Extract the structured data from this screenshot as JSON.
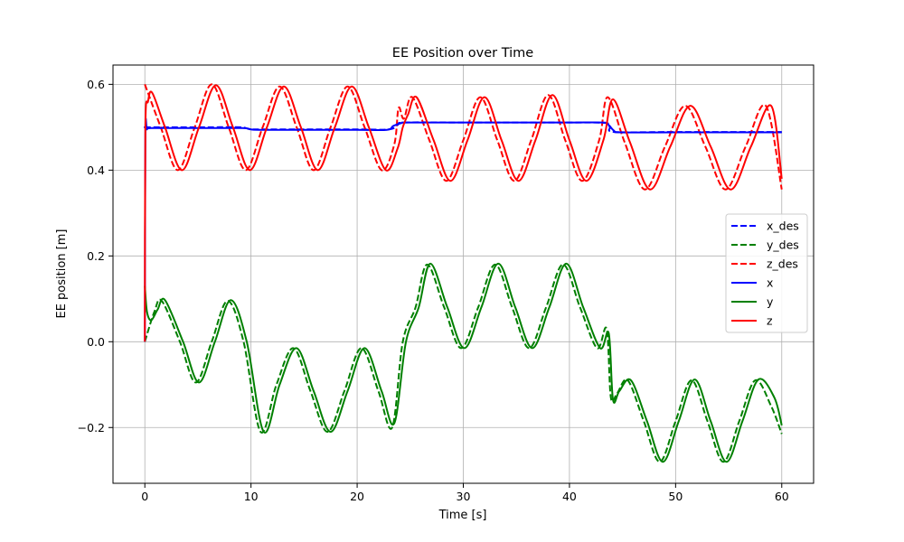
{
  "chart_data": {
    "type": "line",
    "title": "EE Position over Time",
    "xlabel": "Time [s]",
    "ylabel": "EE position [m]",
    "xlim": [
      -3.0,
      63.0
    ],
    "ylim": [
      -0.33,
      0.645
    ],
    "xticks": [
      0,
      10,
      20,
      30,
      40,
      50,
      60
    ],
    "xtick_labels": [
      "0",
      "10",
      "20",
      "30",
      "40",
      "50",
      "60"
    ],
    "yticks": [
      -0.2,
      0.0,
      0.2,
      0.4,
      0.6
    ],
    "ytick_labels": [
      "−0.2",
      "0.0",
      "0.2",
      "0.4",
      "0.6"
    ],
    "grid": true,
    "legend_position": "center-right",
    "series": [
      {
        "name": "x_des",
        "color": "#0000ff",
        "style": "dashed",
        "x": [
          0,
          0.3,
          3,
          6,
          9,
          9.8,
          10.5,
          15,
          20,
          23,
          23.8,
          24.5,
          30,
          35,
          40,
          43.4,
          43.8,
          44.3,
          50,
          55,
          60
        ],
        "y": [
          0.5,
          0.5,
          0.5,
          0.5,
          0.5,
          0.496,
          0.495,
          0.495,
          0.495,
          0.495,
          0.505,
          0.511,
          0.511,
          0.511,
          0.511,
          0.51,
          0.5,
          0.489,
          0.489,
          0.489,
          0.489
        ]
      },
      {
        "name": "y_des",
        "color": "#008000",
        "style": "dashed",
        "x": [
          0,
          0.9,
          1.6,
          3.3,
          4.8,
          6.3,
          7.8,
          9.3,
          10.9,
          12.4,
          14.0,
          15.6,
          17.2,
          18.8,
          20.4,
          22.0,
          23.3,
          24.3,
          25.5,
          26.6,
          28.2,
          29.8,
          31.4,
          33.0,
          34.6,
          36.2,
          37.8,
          39.4,
          41.0,
          42.6,
          43.5,
          43.9,
          44.5,
          45.5,
          47.0,
          48.5,
          50.0,
          51.5,
          53.0,
          54.5,
          56.0,
          57.5,
          59.0,
          60
        ],
        "y": [
          0.0,
          0.07,
          0.095,
          0.0,
          -0.095,
          0.0,
          0.095,
          0.0,
          -0.21,
          -0.1,
          -0.015,
          -0.115,
          -0.21,
          -0.115,
          -0.015,
          -0.115,
          -0.2,
          0.0,
          0.08,
          0.18,
          0.08,
          -0.015,
          0.08,
          0.18,
          0.08,
          -0.015,
          0.08,
          0.18,
          0.08,
          -0.015,
          0.03,
          -0.13,
          -0.12,
          -0.09,
          -0.185,
          -0.28,
          -0.185,
          -0.09,
          -0.185,
          -0.28,
          -0.185,
          -0.09,
          -0.15,
          -0.215
        ]
      },
      {
        "name": "z_des",
        "color": "#ff0000",
        "style": "dashed",
        "x": [
          0,
          1.5,
          3.1,
          4.7,
          6.3,
          7.9,
          9.5,
          11.1,
          12.7,
          14.3,
          15.9,
          17.5,
          19.1,
          20.7,
          22.3,
          23.5,
          23.9,
          24.4,
          25.2,
          26.8,
          28.4,
          30.0,
          31.6,
          33.2,
          34.8,
          36.4,
          38.0,
          39.6,
          41.2,
          42.8,
          43.6,
          45.2,
          47.1,
          49.0,
          50.9,
          52.8,
          54.7,
          56.6,
          58.5,
          60
        ],
        "y": [
          0.6,
          0.5,
          0.4,
          0.5,
          0.6,
          0.5,
          0.4,
          0.5,
          0.595,
          0.5,
          0.4,
          0.5,
          0.595,
          0.5,
          0.4,
          0.46,
          0.545,
          0.52,
          0.57,
          0.47,
          0.375,
          0.47,
          0.57,
          0.47,
          0.375,
          0.47,
          0.575,
          0.47,
          0.375,
          0.47,
          0.57,
          0.465,
          0.355,
          0.455,
          0.55,
          0.455,
          0.355,
          0.455,
          0.55,
          0.355
        ]
      },
      {
        "name": "x",
        "color": "#0000ff",
        "style": "solid",
        "x": [
          0,
          0.05,
          0.2,
          0.6,
          3,
          6,
          9.2,
          10,
          10.7,
          15,
          20,
          22.8,
          23.4,
          24.2,
          24.8,
          30,
          35,
          40,
          43.2,
          43.7,
          44.2,
          44.8,
          50,
          55,
          60
        ],
        "y": [
          0.0,
          0.48,
          0.495,
          0.498,
          0.498,
          0.498,
          0.498,
          0.495,
          0.494,
          0.494,
          0.494,
          0.494,
          0.503,
          0.51,
          0.511,
          0.511,
          0.511,
          0.511,
          0.511,
          0.505,
          0.492,
          0.488,
          0.488,
          0.488,
          0.488
        ]
      },
      {
        "name": "y",
        "color": "#008000",
        "style": "solid",
        "x": [
          0,
          0.2,
          0.6,
          1.2,
          1.9,
          3.6,
          5.1,
          6.6,
          8.1,
          9.6,
          11.2,
          12.7,
          14.3,
          15.9,
          17.5,
          19.1,
          20.7,
          22.3,
          23.5,
          24.6,
          25.8,
          26.9,
          28.5,
          30.1,
          31.7,
          33.3,
          34.9,
          36.5,
          38.1,
          39.7,
          41.3,
          42.9,
          43.7,
          44.1,
          44.7,
          45.8,
          47.3,
          48.8,
          50.3,
          51.8,
          53.3,
          54.8,
          56.3,
          57.8,
          59.3,
          60
        ],
        "y": [
          0.13,
          0.07,
          0.05,
          0.075,
          0.097,
          0.0,
          -0.095,
          0.0,
          0.097,
          0.0,
          -0.21,
          -0.1,
          -0.015,
          -0.115,
          -0.21,
          -0.115,
          -0.015,
          -0.115,
          -0.19,
          0.0,
          0.08,
          0.182,
          0.08,
          -0.015,
          0.08,
          0.182,
          0.08,
          -0.015,
          0.08,
          0.182,
          0.08,
          -0.015,
          0.02,
          -0.135,
          -0.115,
          -0.09,
          -0.185,
          -0.28,
          -0.185,
          -0.088,
          -0.185,
          -0.28,
          -0.185,
          -0.088,
          -0.13,
          -0.195
        ]
      },
      {
        "name": "z",
        "color": "#ff0000",
        "style": "solid",
        "x": [
          0,
          0.05,
          0.3,
          0.7,
          1.9,
          3.5,
          5.1,
          6.7,
          8.3,
          9.9,
          11.5,
          13.1,
          14.7,
          16.3,
          17.9,
          19.5,
          21.1,
          22.7,
          23.8,
          24.3,
          24.8,
          25.6,
          27.2,
          28.8,
          30.4,
          32.0,
          33.6,
          35.2,
          36.8,
          38.4,
          40.0,
          41.6,
          43.2,
          44.1,
          45.7,
          47.6,
          49.5,
          51.4,
          53.3,
          55.2,
          57.1,
          59.0,
          60
        ],
        "y": [
          0.0,
          0.5,
          0.56,
          0.58,
          0.5,
          0.4,
          0.5,
          0.598,
          0.5,
          0.4,
          0.5,
          0.595,
          0.5,
          0.4,
          0.5,
          0.595,
          0.5,
          0.4,
          0.45,
          0.5,
          0.53,
          0.57,
          0.47,
          0.375,
          0.47,
          0.57,
          0.47,
          0.375,
          0.47,
          0.575,
          0.47,
          0.375,
          0.47,
          0.565,
          0.465,
          0.355,
          0.455,
          0.55,
          0.455,
          0.355,
          0.455,
          0.55,
          0.38
        ]
      }
    ]
  }
}
